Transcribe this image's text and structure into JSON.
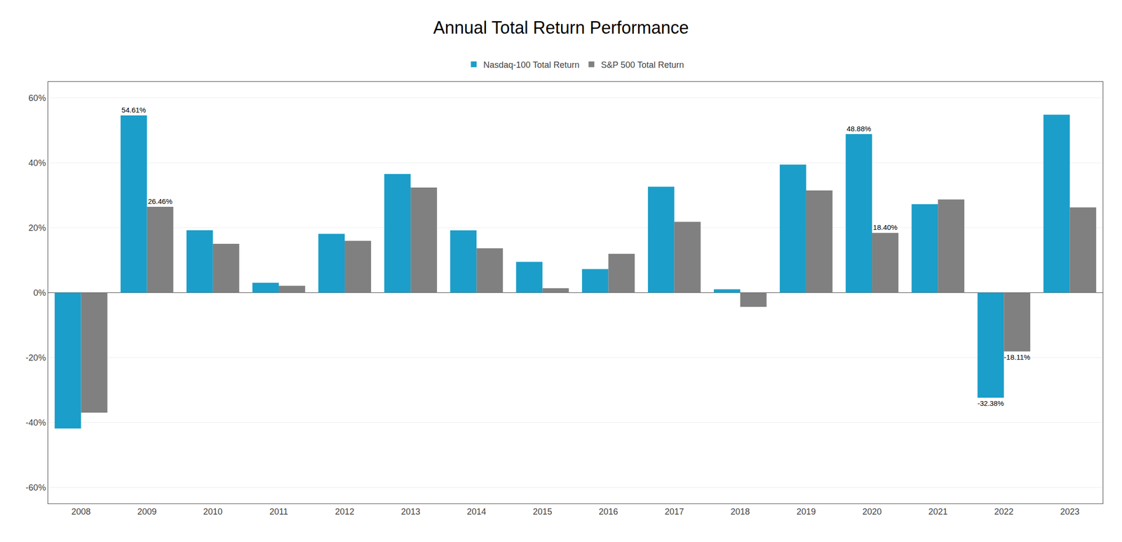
{
  "chart_data": {
    "type": "bar",
    "title": "Annual Total Return Performance",
    "categories": [
      "2008",
      "2009",
      "2010",
      "2011",
      "2012",
      "2013",
      "2014",
      "2015",
      "2016",
      "2017",
      "2018",
      "2019",
      "2020",
      "2021",
      "2022",
      "2023"
    ],
    "series": [
      {
        "name": "Nasdaq-100 Total Return",
        "color": "#1B9EC9",
        "values": [
          -41.89,
          54.61,
          19.22,
          3.05,
          18.12,
          36.57,
          19.18,
          9.47,
          7.26,
          32.66,
          1.04,
          39.46,
          48.88,
          27.27,
          -32.38,
          54.85
        ],
        "value_labels": [
          null,
          "54.61%",
          null,
          null,
          null,
          null,
          null,
          null,
          null,
          null,
          null,
          null,
          "48.88%",
          null,
          "-32.38%",
          null
        ]
      },
      {
        "name": "S&P 500 Total Return",
        "color": "#808080",
        "values": [
          -36.99,
          26.46,
          15.06,
          2.11,
          15.99,
          32.39,
          13.69,
          1.38,
          11.96,
          21.83,
          -4.38,
          31.49,
          18.4,
          28.71,
          -18.11,
          26.29
        ],
        "value_labels": [
          null,
          "26.46%",
          null,
          null,
          null,
          null,
          null,
          null,
          null,
          null,
          null,
          null,
          "18.40%",
          null,
          "-18.11%",
          null
        ]
      }
    ],
    "ylim": [
      -65,
      65
    ],
    "yticks": [
      {
        "value": -60,
        "label": "-60%"
      },
      {
        "value": -40,
        "label": "-40%"
      },
      {
        "value": -20,
        "label": "-20%"
      },
      {
        "value": 0,
        "label": "0%"
      },
      {
        "value": 20,
        "label": "20%"
      },
      {
        "value": 40,
        "label": "40%"
      },
      {
        "value": 60,
        "label": "60%"
      }
    ],
    "grid": true,
    "data_labels": true
  }
}
